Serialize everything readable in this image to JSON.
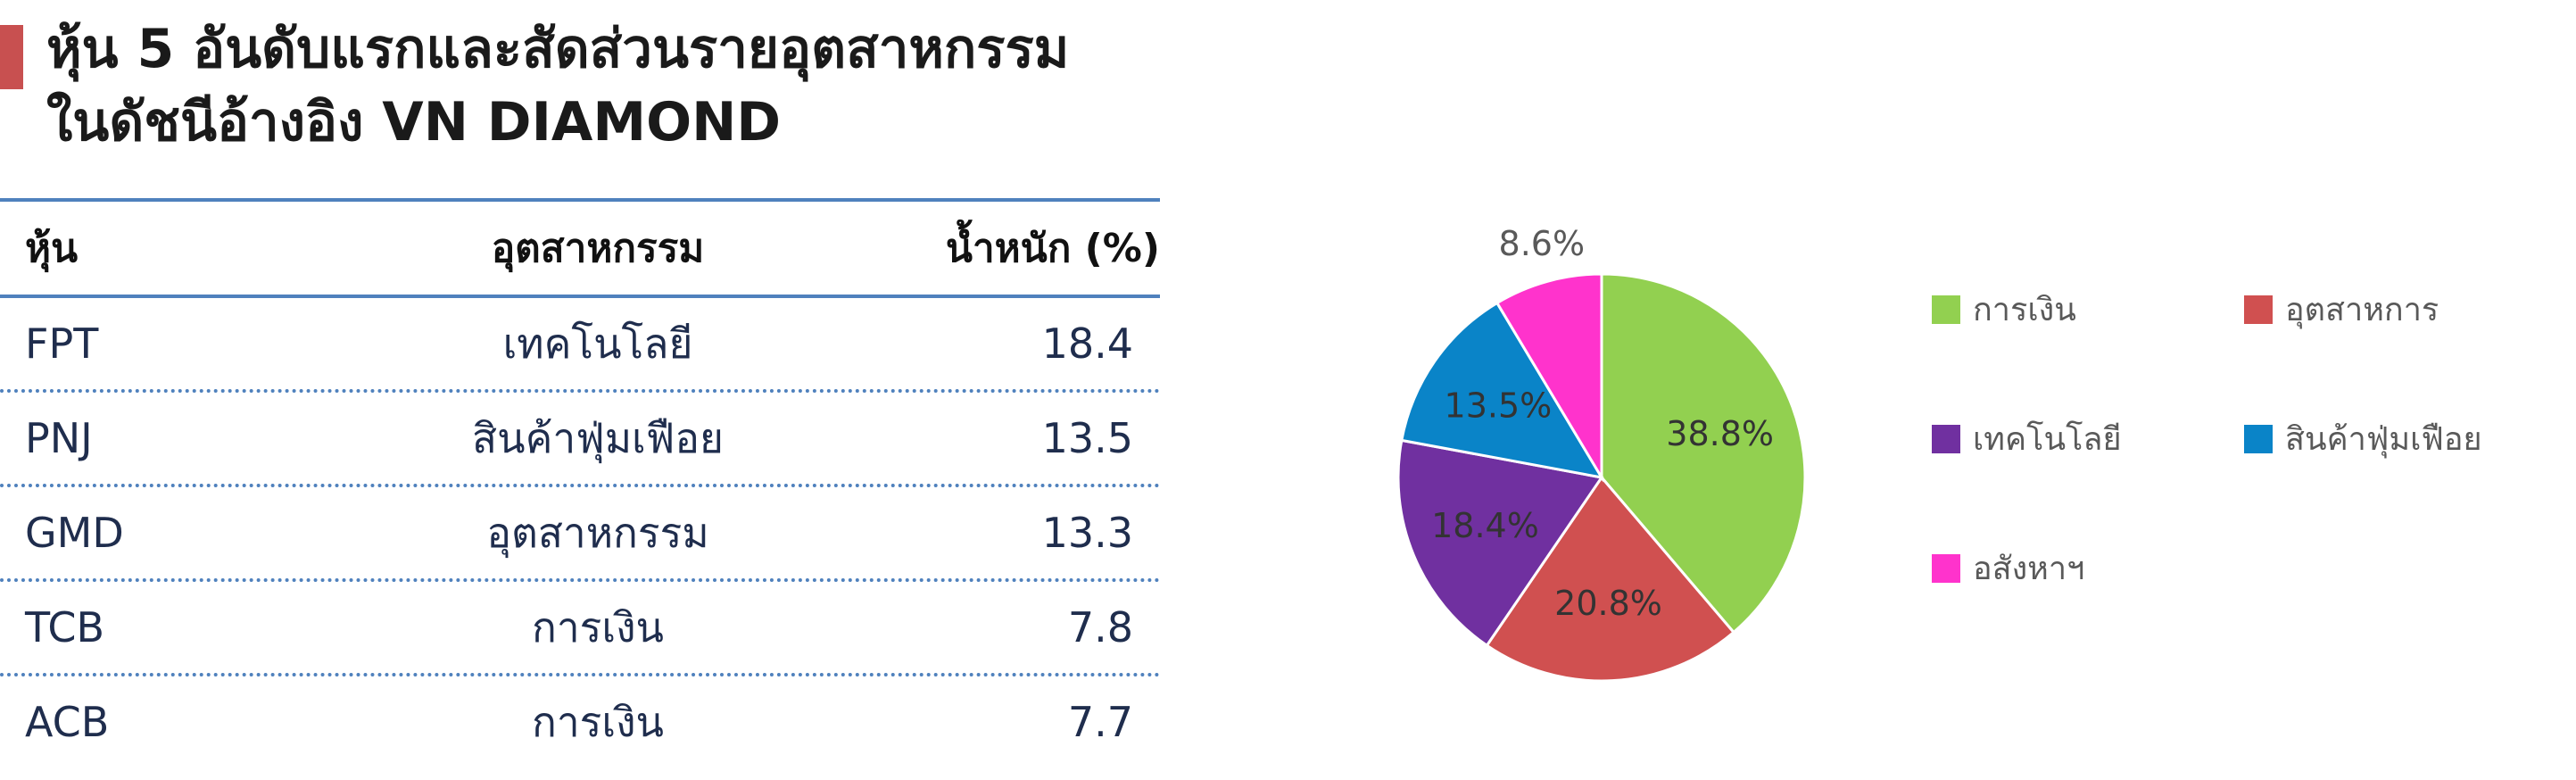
{
  "title": {
    "line1": "หุ้น 5 อันดับแรกและสัดส่วนรายอุตสาหกรรม",
    "line2": "ในดัชนีอ้างอิง VN DIAMOND"
  },
  "table": {
    "headers": [
      "หุ้น",
      "อุตสาหกรรม",
      "น้ำหนัก (%)"
    ],
    "rows": [
      {
        "stock": "FPT",
        "industry": "เทคโนโลยี",
        "weight": "18.4"
      },
      {
        "stock": "PNJ",
        "industry": "สินค้าฟุ่มเฟือย",
        "weight": "13.5"
      },
      {
        "stock": "GMD",
        "industry": "อุตสาหกรรม",
        "weight": "13.3"
      },
      {
        "stock": "TCB",
        "industry": "การเงิน",
        "weight": "7.8"
      },
      {
        "stock": "ACB",
        "industry": "การเงิน",
        "weight": "7.7"
      }
    ]
  },
  "chart_data": {
    "type": "pie",
    "categories": [
      "การเงิน",
      "อุตสาหการ",
      "เทคโนโลยี",
      "สินค้าฟุ่มเฟือย",
      "อสังหาฯ"
    ],
    "values": [
      38.8,
      20.8,
      18.4,
      13.5,
      8.6
    ],
    "labels": [
      "38.8%",
      "20.8%",
      "18.4%",
      "13.5%",
      "8.6%"
    ],
    "colors": [
      "#92d050",
      "#d05050",
      "#7030a0",
      "#0a84c8",
      "#ff33cc"
    ],
    "legend_position": "right"
  }
}
